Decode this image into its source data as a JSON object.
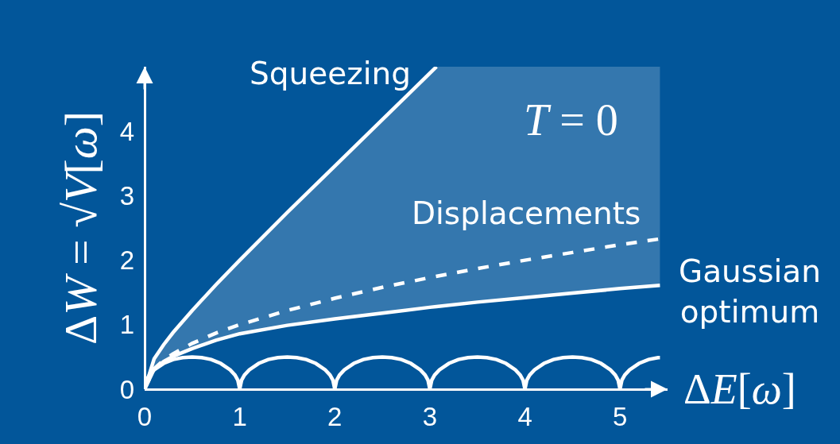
{
  "chart_data": {
    "type": "line",
    "xlabel": "ΔE[ω]",
    "ylabel": "ΔW = √V[ω]",
    "annotations": [
      "T = 0"
    ],
    "xlim": [
      0,
      5.5
    ],
    "xticks": [
      0,
      1,
      2,
      3,
      4,
      5
    ],
    "ylim": [
      0,
      5
    ],
    "yticks": [
      0,
      1,
      2,
      3,
      4
    ],
    "series": [
      {
        "name": "Squeezing",
        "color": "#ffffff",
        "line_style": "solid",
        "x": [
          0,
          0.1,
          0.2,
          0.3,
          0.5,
          0.75,
          1,
          1.5,
          2,
          2.5,
          3,
          3.07
        ],
        "values": [
          0,
          0.47,
          0.69,
          0.88,
          1.22,
          1.62,
          2,
          2.74,
          3.46,
          4.18,
          4.9,
          5
        ]
      },
      {
        "name": "Displacements",
        "color": "#ffffff",
        "line_style": "dashed",
        "x": [
          0,
          0.1,
          0.2,
          0.3,
          0.5,
          0.75,
          1,
          1.5,
          2,
          2.5,
          3,
          3.5,
          4,
          4.5,
          5,
          5.42
        ],
        "values": [
          0,
          0.32,
          0.45,
          0.55,
          0.71,
          0.87,
          1,
          1.22,
          1.41,
          1.58,
          1.73,
          1.87,
          2,
          2.12,
          2.24,
          2.33
        ]
      },
      {
        "name": "Gaussian optimum",
        "color": "#ffffff",
        "line_style": "solid",
        "x": [
          0,
          0.1,
          0.2,
          0.3,
          0.5,
          0.75,
          1,
          1.5,
          2,
          2.5,
          3,
          3.07,
          3.5,
          4,
          4.5,
          5,
          5.42
        ],
        "values": [
          0,
          0.31,
          0.43,
          0.51,
          0.63,
          0.76,
          0.86,
          0.99,
          1.09,
          1.18,
          1.27,
          1.28,
          1.35,
          1.42,
          1.49,
          1.56,
          1.61
        ],
        "lower": [
          0,
          0.31,
          0.43,
          0.51,
          0.63,
          0.76,
          0.86,
          0.99,
          1.09,
          1.18,
          1.27,
          1.28,
          1.35,
          1.42,
          1.49,
          1.56,
          1.61
        ],
        "upper": [
          0,
          0.47,
          0.69,
          0.88,
          1.22,
          1.62,
          2,
          2.74,
          3.46,
          4.18,
          4.9,
          5,
          5,
          5,
          5,
          5,
          5
        ]
      },
      {
        "color": "#ffffff",
        "line_style": "solid",
        "x": [
          0,
          0.02,
          0.05,
          0.1,
          0.2,
          0.3,
          0.4,
          0.5,
          0.6,
          0.7,
          0.8,
          0.9,
          0.95,
          0.98,
          1,
          1.02,
          1.05,
          1.1,
          1.2,
          1.3,
          1.4,
          1.5,
          1.6,
          1.7,
          1.8,
          1.9,
          1.95,
          1.98,
          2,
          2.02,
          2.05,
          2.1,
          2.2,
          2.3,
          2.4,
          2.5,
          2.6,
          2.7,
          2.8,
          2.9,
          2.95,
          2.98,
          3,
          3.02,
          3.05,
          3.1,
          3.2,
          3.3,
          3.4,
          3.5,
          3.6,
          3.7,
          3.8,
          3.9,
          3.95,
          3.98,
          4,
          4.02,
          4.05,
          4.1,
          4.2,
          4.3,
          4.4,
          4.5,
          4.6,
          4.7,
          4.8,
          4.9,
          4.95,
          4.98,
          5,
          5.02,
          5.05,
          5.1,
          5.2,
          5.3,
          5.4,
          5.42
        ],
        "values": [
          0,
          0.14,
          0.22,
          0.3,
          0.4,
          0.46,
          0.49,
          0.5,
          0.49,
          0.46,
          0.4,
          0.3,
          0.22,
          0.14,
          0,
          0.14,
          0.22,
          0.3,
          0.4,
          0.46,
          0.49,
          0.5,
          0.49,
          0.46,
          0.4,
          0.3,
          0.22,
          0.14,
          0,
          0.14,
          0.22,
          0.3,
          0.4,
          0.46,
          0.49,
          0.5,
          0.49,
          0.46,
          0.4,
          0.3,
          0.22,
          0.14,
          0,
          0.14,
          0.22,
          0.3,
          0.4,
          0.46,
          0.49,
          0.5,
          0.49,
          0.46,
          0.4,
          0.3,
          0.22,
          0.14,
          0,
          0.14,
          0.22,
          0.3,
          0.4,
          0.46,
          0.49,
          0.5,
          0.49,
          0.46,
          0.4,
          0.3,
          0.22,
          0.14,
          0,
          0.14,
          0.22,
          0.3,
          0.4,
          0.46,
          0.49,
          0.49
        ]
      }
    ],
    "marker": "none"
  }
}
